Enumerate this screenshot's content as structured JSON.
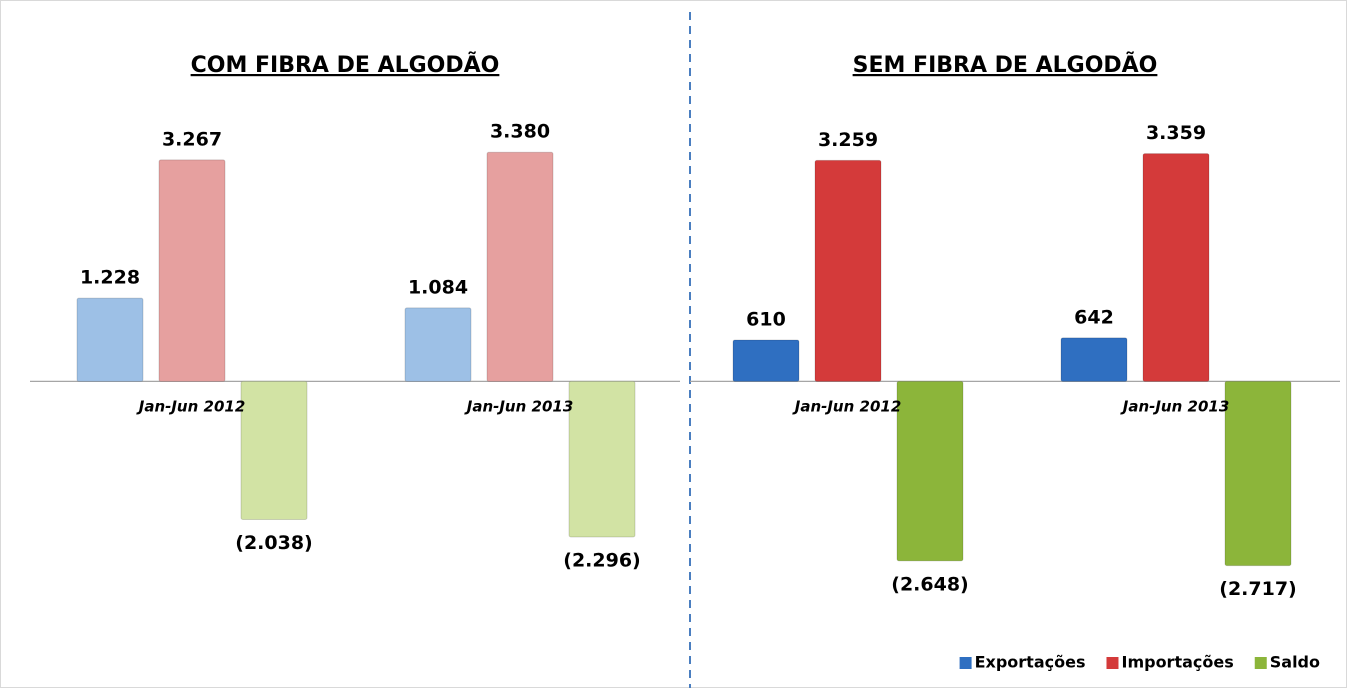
{
  "chart_data": [
    {
      "type": "bar",
      "title": "COM FIBRA DE ALGODÃO",
      "categories": [
        "Jan-Jun 2012",
        "Jan-Jun 2013"
      ],
      "series": [
        {
          "color": "#9dc0e6",
          "values": [
            1228,
            1084
          ],
          "value_labels": [
            "1.228",
            "1.084"
          ]
        },
        {
          "color": "#e6a09f",
          "values": [
            3267,
            3380
          ],
          "value_labels": [
            "3.267",
            "3.380"
          ]
        },
        {
          "color": "#d2e3a4",
          "values": [
            -2038,
            -2296
          ],
          "value_labels": [
            "(2.038)",
            "(2.296)"
          ]
        }
      ],
      "ylim": [
        -3800,
        4150
      ]
    },
    {
      "type": "bar",
      "title": "SEM FIBRA DE ALGODÃO",
      "categories": [
        "Jan-Jun 2012",
        "Jan-Jun 2013"
      ],
      "series": [
        {
          "name": "Exportações",
          "color": "#2f6fc1",
          "values": [
            610,
            642
          ],
          "value_labels": [
            "610",
            "642"
          ]
        },
        {
          "name": "Importações",
          "color": "#d43a3a",
          "values": [
            3259,
            3359
          ],
          "value_labels": [
            "3.259",
            "3.359"
          ]
        },
        {
          "name": "Saldo",
          "color": "#8cb53a",
          "values": [
            -2648,
            -2717
          ],
          "value_labels": [
            "(2.648)",
            "(2.717)"
          ]
        }
      ],
      "ylim": [
        -3800,
        4150
      ],
      "legend": "bottom-right"
    }
  ]
}
